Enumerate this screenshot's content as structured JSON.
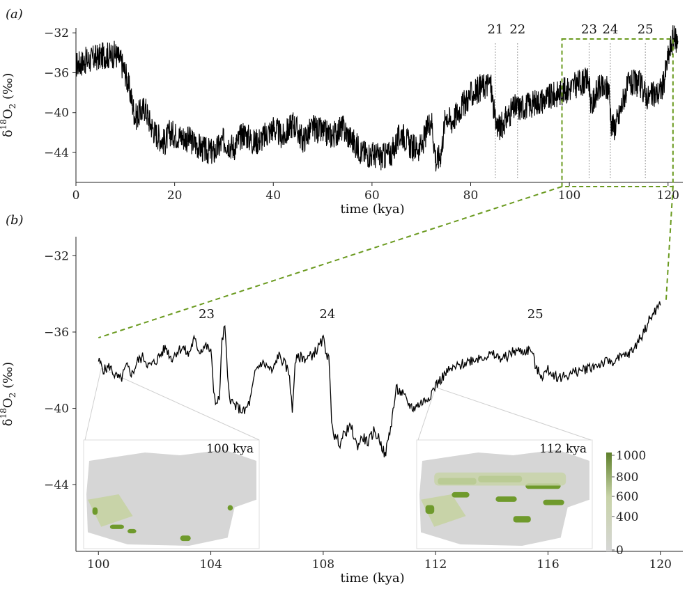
{
  "chart_data": [
    {
      "panel": "(a)",
      "type": "line",
      "xlabel": "time (kya)",
      "ylabel": "δ18O2 (‰)",
      "xlim": [
        0,
        123
      ],
      "ylim": [
        -47,
        -31.5
      ],
      "xticks": [
        0,
        20,
        40,
        60,
        80,
        100,
        120
      ],
      "yticks": [
        -32,
        -36,
        -40,
        -44
      ],
      "ytick_labels": [
        "−32",
        "−36",
        "−40",
        "−44"
      ],
      "events": [
        {
          "label": "21",
          "x": 85.0
        },
        {
          "label": "22",
          "x": 89.5
        },
        {
          "label": "23",
          "x": 104.0
        },
        {
          "label": "24",
          "x": 108.3
        },
        {
          "label": "25",
          "x": 115.4
        }
      ],
      "zoom_box": {
        "x": [
          98.5,
          121.0
        ],
        "y": [
          -47.5,
          -31.6
        ]
      },
      "series": [
        {
          "x": [
            0,
            1,
            2,
            3,
            4,
            5,
            6,
            7,
            8,
            9,
            10,
            11,
            12,
            13,
            14,
            15,
            16,
            17,
            18,
            19,
            20,
            22,
            24,
            26,
            28,
            30,
            32,
            34,
            36,
            38,
            40,
            42,
            44,
            46,
            48,
            50,
            52,
            54,
            56,
            58,
            60,
            62,
            64,
            66,
            68,
            70,
            71,
            72,
            73,
            74,
            75,
            76,
            78,
            80,
            82,
            84,
            85,
            86,
            88,
            89,
            90,
            92,
            94,
            96,
            98,
            100,
            102,
            104,
            104.5,
            105,
            106,
            107,
            108,
            108.5,
            109,
            110,
            111,
            112,
            114,
            116,
            118,
            119,
            120,
            121,
            122
          ],
          "values": [
            -35.2,
            -35.0,
            -34.8,
            -34.7,
            -34.5,
            -34.4,
            -34.2,
            -34.3,
            -34.1,
            -34.8,
            -36.0,
            -38.0,
            -40.5,
            -40.0,
            -39.5,
            -41.0,
            -42.0,
            -42.5,
            -43.0,
            -42.0,
            -42.2,
            -42.5,
            -43.0,
            -43.8,
            -44.0,
            -42.8,
            -43.5,
            -42.0,
            -43.0,
            -42.5,
            -41.5,
            -42.5,
            -41.0,
            -42.8,
            -41.5,
            -42.0,
            -42.3,
            -41.5,
            -42.8,
            -44.0,
            -44.2,
            -44.5,
            -44.0,
            -42.0,
            -43.5,
            -43.5,
            -42.0,
            -40.5,
            -45.0,
            -44.0,
            -40.0,
            -41.0,
            -39.5,
            -38.3,
            -37.5,
            -37.0,
            -41.0,
            -41.5,
            -40.0,
            -39.5,
            -39.5,
            -39.2,
            -38.8,
            -38.5,
            -38.0,
            -37.6,
            -37.0,
            -36.8,
            -39.8,
            -38.5,
            -37.5,
            -37.7,
            -37.5,
            -41.0,
            -41.5,
            -40.5,
            -38.5,
            -37.2,
            -37.0,
            -38.5,
            -38.0,
            -37.3,
            -34.5,
            -32.5,
            -32.8
          ]
        }
      ]
    },
    {
      "panel": "(b)",
      "type": "line",
      "xlabel": "time (kya)",
      "ylabel": "δ18O2 (‰)",
      "xlim": [
        99.2,
        120.8
      ],
      "ylim": [
        -47.5,
        -31.0
      ],
      "xticks": [
        100,
        104,
        108,
        112,
        116,
        120
      ],
      "yticks": [
        -32,
        -36,
        -40,
        -44
      ],
      "ytick_labels": [
        "−32",
        "−36",
        "−40",
        "−44"
      ],
      "events": [
        {
          "label": "23",
          "x": 103.7
        },
        {
          "label": "24",
          "x": 108.0
        },
        {
          "label": "25",
          "x": 115.4
        }
      ],
      "series": [
        {
          "x": [
            100.0,
            100.2,
            100.4,
            100.6,
            100.8,
            101.0,
            101.2,
            101.4,
            101.6,
            101.8,
            102.0,
            102.2,
            102.4,
            102.6,
            102.8,
            103.0,
            103.2,
            103.4,
            103.6,
            103.8,
            104.0,
            104.1,
            104.2,
            104.3,
            104.4,
            104.5,
            104.6,
            104.7,
            104.8,
            105.0,
            105.2,
            105.4,
            105.6,
            105.8,
            106.0,
            106.2,
            106.4,
            106.6,
            106.8,
            106.9,
            107.0,
            107.2,
            107.4,
            107.6,
            107.8,
            108.0,
            108.2,
            108.3,
            108.4,
            108.6,
            108.8,
            109.0,
            109.2,
            109.4,
            109.6,
            109.8,
            110.0,
            110.2,
            110.4,
            110.6,
            110.8,
            111.0,
            111.2,
            111.4,
            111.6,
            111.8,
            112.0,
            112.4,
            112.8,
            113.2,
            113.6,
            114.0,
            114.4,
            114.8,
            115.2,
            115.4,
            115.6,
            115.8,
            116.0,
            116.4,
            116.8,
            117.2,
            117.6,
            118.0,
            118.4,
            118.8,
            119.0,
            119.2,
            119.4,
            119.6,
            119.8,
            120.0
          ],
          "values": [
            -37.5,
            -38.0,
            -37.8,
            -38.3,
            -38.5,
            -37.8,
            -38.2,
            -37.5,
            -37.3,
            -37.8,
            -37.6,
            -37.2,
            -36.8,
            -37.4,
            -37.0,
            -36.8,
            -37.2,
            -36.4,
            -37.0,
            -36.7,
            -37.0,
            -39.0,
            -39.8,
            -39.5,
            -36.5,
            -35.7,
            -38.5,
            -39.5,
            -39.8,
            -40.0,
            -40.2,
            -39.6,
            -38.0,
            -37.6,
            -37.8,
            -38.1,
            -37.2,
            -37.6,
            -38.2,
            -40.3,
            -37.5,
            -37.3,
            -37.4,
            -37.2,
            -36.9,
            -36.4,
            -37.5,
            -40.5,
            -41.5,
            -41.8,
            -41.2,
            -41.0,
            -42.0,
            -41.5,
            -41.8,
            -41.2,
            -41.6,
            -42.5,
            -41.0,
            -39.0,
            -39.2,
            -39.7,
            -40.0,
            -39.8,
            -39.6,
            -39.3,
            -38.8,
            -38.1,
            -37.8,
            -37.5,
            -37.3,
            -37.2,
            -37.4,
            -37.0,
            -37.0,
            -36.9,
            -38.0,
            -38.3,
            -38.0,
            -38.4,
            -38.2,
            -38.0,
            -37.8,
            -37.6,
            -37.5,
            -37.2,
            -37.0,
            -36.5,
            -36.0,
            -35.4,
            -34.9,
            -34.6
          ]
        }
      ],
      "insets": [
        {
          "label": "100 kya"
        },
        {
          "label": "112 kya"
        }
      ],
      "colorbar": {
        "ticks": [
          "1000",
          "800",
          "600",
          "400",
          "0"
        ],
        "colors": [
          "#5d7f2a",
          "#c8d3a8",
          "#d6d6d6"
        ]
      }
    }
  ]
}
